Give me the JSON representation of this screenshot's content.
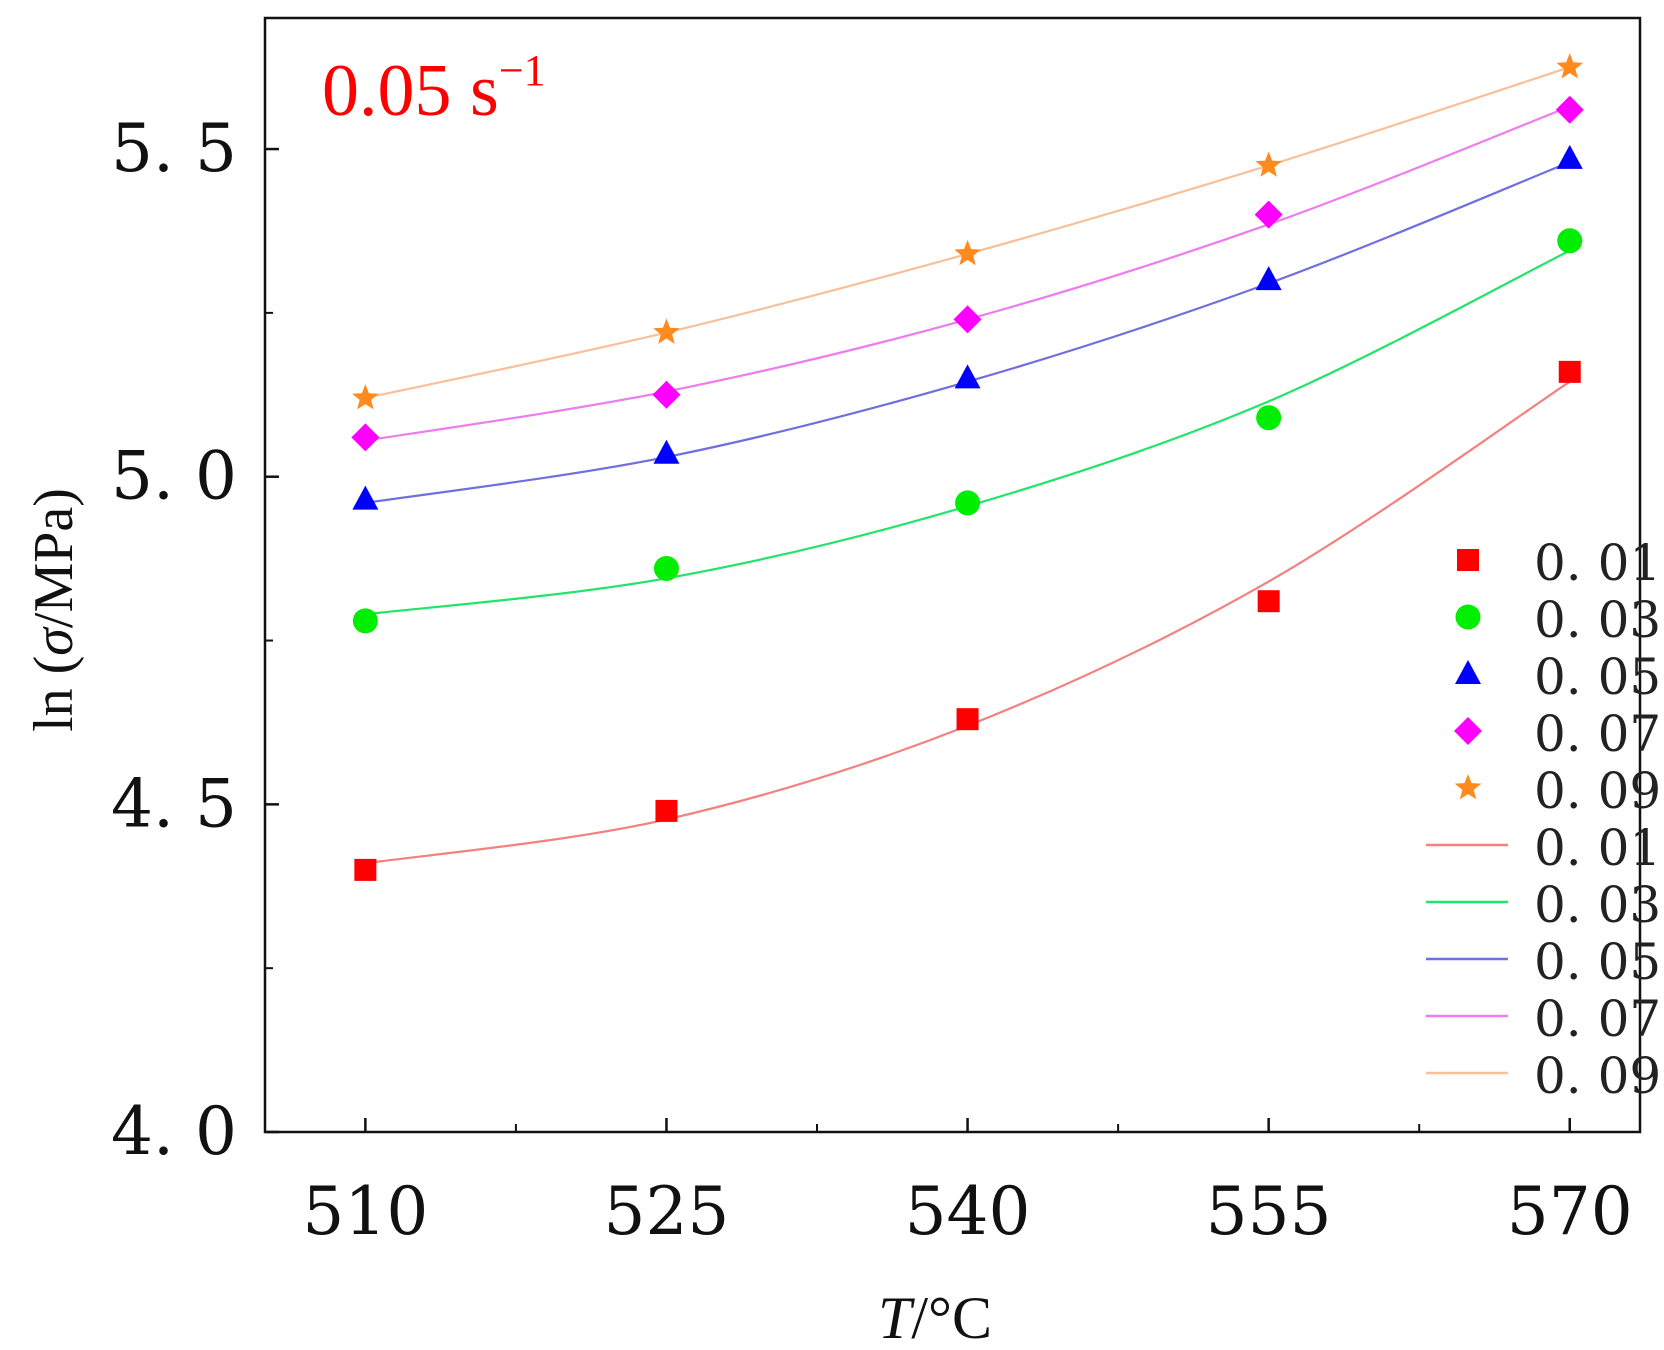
{
  "chart_data": {
    "type": "scatter",
    "annotation": {
      "text": "0.05 s",
      "superscript": "−1",
      "color": "#ff0000"
    },
    "xlabel": {
      "italic": "T",
      "rest": "/°C"
    },
    "ylabel": {
      "prefix": "ln (",
      "italic": "σ",
      "suffix": "/MPa)"
    },
    "x": [
      510,
      525,
      540,
      555,
      570
    ],
    "x_tick_labels": [
      "510",
      "525",
      "540",
      "555",
      "570"
    ],
    "xlim": [
      505,
      573.5
    ],
    "y_ticks": [
      4.0,
      4.5,
      5.0,
      5.5
    ],
    "y_tick_labels": [
      "4. 0",
      "4. 5",
      "5. 0",
      "5. 5"
    ],
    "ylim": [
      4.0,
      5.7
    ],
    "legend_position": "right",
    "series": [
      {
        "name": "0. 01",
        "marker": "square",
        "marker_color": "#ff0000",
        "line_color": "#f48080",
        "values": [
          4.4,
          4.49,
          4.63,
          4.81,
          5.16
        ],
        "fit": [
          4.41,
          4.477,
          4.62,
          4.84,
          5.145
        ]
      },
      {
        "name": "0. 03",
        "marker": "circle",
        "marker_color": "#00ee00",
        "line_color": "#22e46a",
        "values": [
          4.78,
          4.86,
          4.96,
          5.09,
          5.36
        ],
        "fit": [
          4.79,
          4.845,
          4.955,
          5.115,
          5.345
        ]
      },
      {
        "name": "0. 05",
        "marker": "triangle",
        "marker_color": "#0000ff",
        "line_color": "#6f6fe0",
        "values": [
          4.965,
          5.035,
          5.15,
          5.3,
          5.485
        ],
        "fit": [
          4.96,
          5.03,
          5.145,
          5.295,
          5.48
        ]
      },
      {
        "name": "0. 07",
        "marker": "diamond",
        "marker_color": "#ff00ff",
        "line_color": "#ee7cee",
        "values": [
          5.06,
          5.125,
          5.24,
          5.4,
          5.56
        ],
        "fit": [
          5.055,
          5.13,
          5.24,
          5.385,
          5.565
        ]
      },
      {
        "name": "0. 09",
        "marker": "star",
        "marker_color": "#ff8a1e",
        "line_color": "#f8c09a",
        "values": [
          5.12,
          5.22,
          5.34,
          5.475,
          5.625
        ],
        "fit": [
          5.12,
          5.22,
          5.34,
          5.475,
          5.625
        ]
      }
    ]
  }
}
